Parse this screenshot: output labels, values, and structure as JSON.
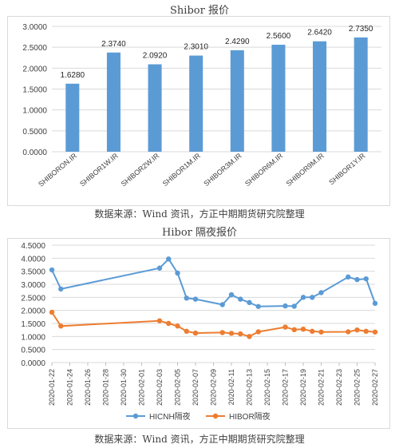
{
  "chart1_title": "Shibor 报价",
  "chart1_source": "数据来源：Wind 资讯，方正中期期货研究院整理",
  "chart2_title": "Hibor 隔夜报价",
  "chart2_source": "数据来源：Wind 资讯，方正中期期货研究院整理",
  "colors": {
    "bar": "#5b9bd5",
    "hicnh": "#5b9bd5",
    "hibor": "#ed7d31",
    "grid": "#d9d9d9"
  },
  "chart_data": [
    {
      "type": "bar",
      "title": "Shibor 报价",
      "categories": [
        "SHIBORON.IR",
        "SHIBOR1W.IR",
        "SHIBOR2W.IR",
        "SHIBOR1M.IR",
        "SHIBOR3M.IR",
        "SHIBOR6M.IR",
        "SHIBOR9M.IR",
        "SHIBOR1Y.IR"
      ],
      "values": [
        1.628,
        2.374,
        2.092,
        2.301,
        2.429,
        2.56,
        2.642,
        2.735
      ],
      "value_labels": [
        "1.6280",
        "2.3740",
        "2.0920",
        "2.3010",
        "2.4290",
        "2.5600",
        "2.6420",
        "2.7350"
      ],
      "ylim": [
        0,
        3
      ],
      "yticks": [
        "0.0000",
        "0.5000",
        "1.0000",
        "1.5000",
        "2.0000",
        "2.5000",
        "3.0000"
      ],
      "grid": true
    },
    {
      "type": "line",
      "title": "Hibor 隔夜报价",
      "x": [
        "2020-01-22",
        "2020-01-23",
        "2020-02-03",
        "2020-02-04",
        "2020-02-05",
        "2020-02-06",
        "2020-02-07",
        "2020-02-10",
        "2020-02-11",
        "2020-02-12",
        "2020-02-13",
        "2020-02-14",
        "2020-02-17",
        "2020-02-18",
        "2020-02-19",
        "2020-02-20",
        "2020-02-21",
        "2020-02-24",
        "2020-02-25",
        "2020-02-26",
        "2020-02-27"
      ],
      "xticks": [
        "2020-01-22",
        "2020-01-24",
        "2020-01-26",
        "2020-01-28",
        "2020-01-30",
        "2020-02-01",
        "2020-02-03",
        "2020-02-05",
        "2020-02-07",
        "2020-02-09",
        "2020-02-11",
        "2020-02-13",
        "2020-02-15",
        "2020-02-17",
        "2020-02-19",
        "2020-02-21",
        "2020-02-23",
        "2020-02-25",
        "2020-02-27"
      ],
      "series": [
        {
          "name": "HICNH隔夜",
          "values": [
            3.55,
            2.82,
            3.62,
            3.97,
            3.43,
            2.47,
            2.43,
            2.22,
            2.6,
            2.43,
            2.3,
            2.15,
            2.17,
            2.16,
            2.5,
            2.5,
            2.68,
            3.28,
            3.18,
            3.21,
            2.27
          ]
        },
        {
          "name": "HIBOR隔夜",
          "values": [
            1.93,
            1.4,
            1.6,
            1.5,
            1.4,
            1.2,
            1.13,
            1.15,
            1.12,
            1.1,
            1.0,
            1.18,
            1.36,
            1.26,
            1.28,
            1.2,
            1.17,
            1.18,
            1.25,
            1.2,
            1.17
          ]
        }
      ],
      "ylim": [
        0,
        4.5
      ],
      "yticks": [
        "0.0000",
        "0.5000",
        "1.0000",
        "1.5000",
        "2.0000",
        "2.5000",
        "3.0000",
        "3.5000",
        "4.0000",
        "4.5000"
      ],
      "grid": true,
      "legend": "bottom"
    }
  ]
}
